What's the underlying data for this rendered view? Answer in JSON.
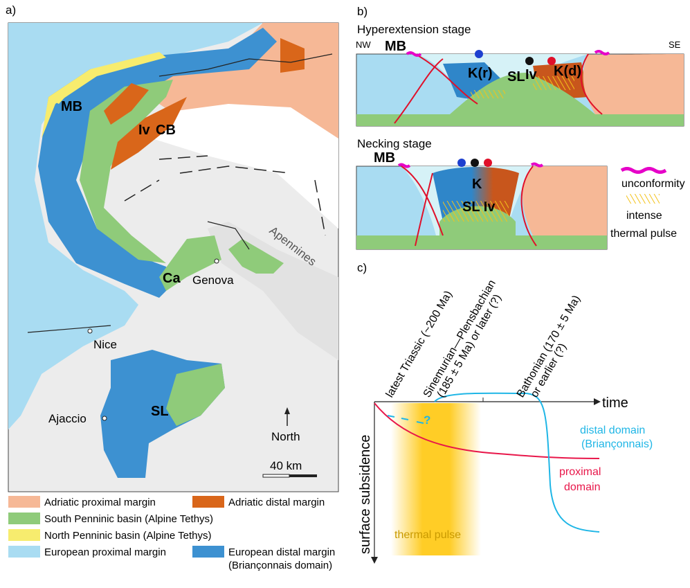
{
  "panel_a": {
    "label": "a)",
    "map_labels": {
      "mb": "MB",
      "iv": "Iv",
      "cb": "CB",
      "ca": "Ca",
      "genova": "Genova",
      "nice": "Nice",
      "ajaccio": "Ajaccio",
      "sl": "SL",
      "apennines": "Apennines"
    },
    "north": "North",
    "scale": "40 km",
    "legend": [
      {
        "label": "Adriatic proximal margin",
        "color": "#f6b896"
      },
      {
        "label": "Adriatic distal margin",
        "color": "#d9661a"
      },
      {
        "label": "South Penninic basin (Alpine Tethys)",
        "color": "#8fcb7a"
      },
      {
        "label": "North Penninic basin (Alpine Tethys)",
        "color": "#f7ec6e"
      },
      {
        "label": "European proximal margin",
        "color": "#a9dcf2"
      },
      {
        "label": "European distal margin",
        "label2": "(Briançonnais domain)",
        "color": "#3d91d1"
      }
    ]
  },
  "panel_b": {
    "label": "b)",
    "hyper": {
      "title": "Hyperextension stage",
      "nw": "NW",
      "se": "SE",
      "mb": "MB",
      "kr": "K(r)",
      "sl": "SL",
      "iv": "Iv",
      "kd": "K(d)"
    },
    "necking": {
      "title": "Necking stage",
      "mb": "MB",
      "k": "K",
      "sliv": "SL Iv"
    },
    "legend": {
      "unconformity": "unconformity",
      "thermal1": "intense",
      "thermal2": "thermal pulse"
    }
  },
  "panel_c": {
    "label": "c)",
    "x_axis": "time",
    "y_axis": "surface subsidence",
    "events": [
      {
        "lines": [
          "latest Triassic (~200 Ma)"
        ]
      },
      {
        "lines": [
          "Sinemurian—Plensbachian",
          "(185 ± 5 Ma) or later (?)"
        ]
      },
      {
        "lines": [
          "Bathonian (170 ± 5 Ma)",
          "or earlier (?)"
        ]
      }
    ],
    "distal": [
      "distal domain",
      "(Briançonnais)"
    ],
    "proximal": [
      "proximal",
      "domain"
    ],
    "question": "?",
    "thermal": "thermal pulse"
  }
}
